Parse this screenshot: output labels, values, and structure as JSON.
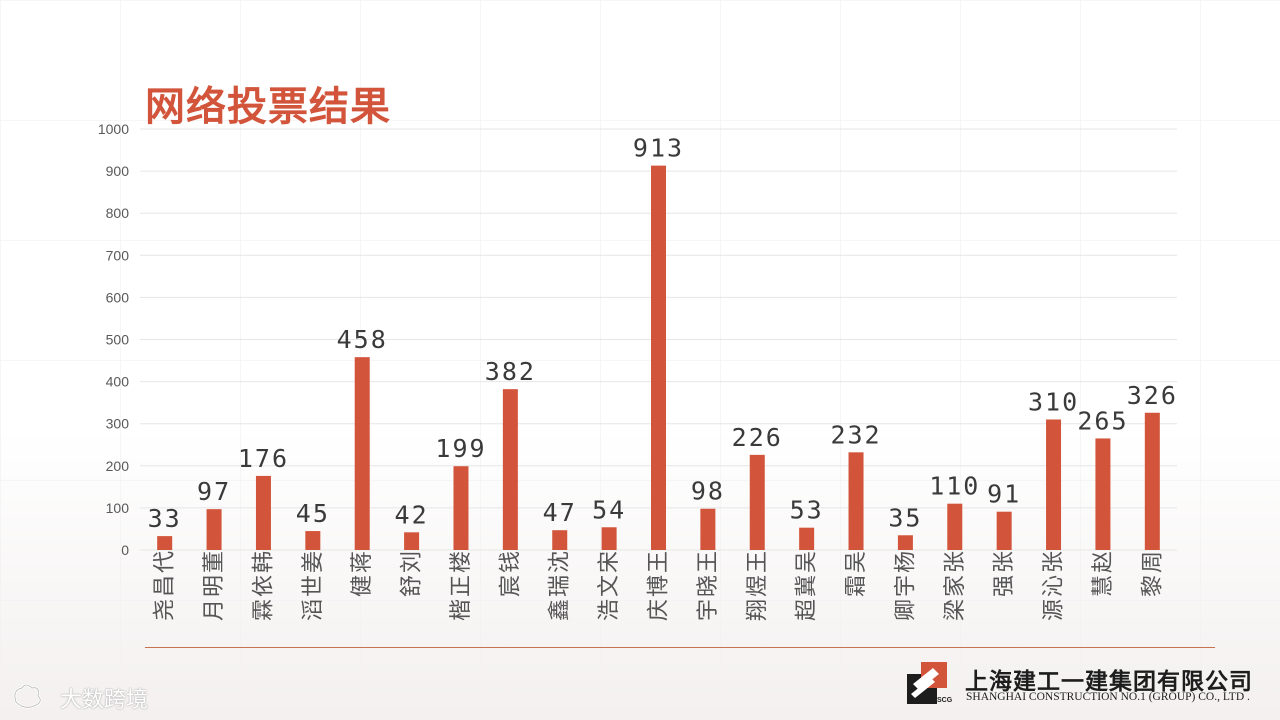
{
  "title": "网络投票结果",
  "company": {
    "name_cn": "上海建工一建集团有限公司",
    "name_en": "SHANGHAI CONSTRUCTION NO.1 (GROUP) CO., LTD .",
    "logo_text": "SCG"
  },
  "watermark": "大数跨境",
  "colors": {
    "bar": "#d2543a",
    "title": "#d2543a",
    "grid": "#e6e6e6",
    "axis_text": "#595959"
  },
  "chart_data": {
    "type": "bar",
    "categories": [
      "代昌尧",
      "董明月",
      "韩依霖",
      "姜世滔",
      "蒋健",
      "刘舒",
      "楼正楷",
      "钱宸",
      "沈瑞鑫",
      "宋文浩",
      "王博庆",
      "王晓宇",
      "王煜翔",
      "吴冀超",
      "吴霜",
      "杨宇卿",
      "张家梁",
      "张强",
      "张沁源",
      "赵慧",
      "周黎"
    ],
    "values": [
      33,
      97,
      176,
      45,
      458,
      42,
      199,
      382,
      47,
      54,
      913,
      98,
      226,
      53,
      232,
      35,
      110,
      91,
      310,
      265,
      326
    ],
    "ylim": [
      0,
      1000
    ],
    "yticks": [
      0,
      100,
      200,
      300,
      400,
      500,
      600,
      700,
      800,
      900,
      1000
    ],
    "grid": true,
    "data_labels": true
  }
}
